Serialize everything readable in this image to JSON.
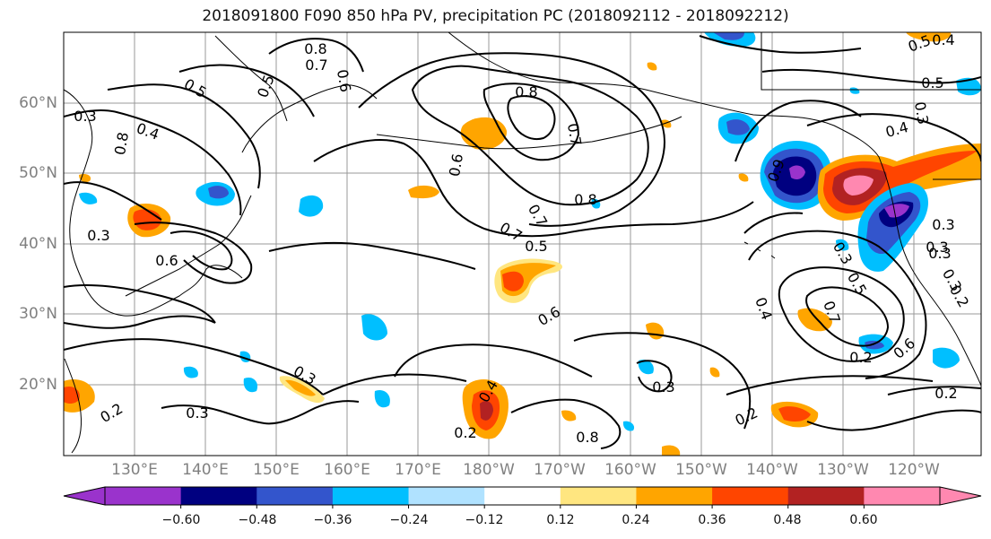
{
  "title": "2018091800 F090 850 hPa PV, precipitation PC (2018092112 - 2018092212)",
  "lat_labels": [
    "60°N",
    "50°N",
    "40°N",
    "30°N",
    "20°N"
  ],
  "lon_labels": [
    "130°E",
    "140°E",
    "150°E",
    "160°E",
    "170°E",
    "180°W",
    "170°W",
    "160°W",
    "150°W",
    "140°W",
    "130°W",
    "120°W"
  ],
  "colorbar": {
    "labels": [
      "−0.60",
      "−0.48",
      "−0.36",
      "−0.24",
      "−0.12",
      "0.12",
      "0.24",
      "0.36",
      "0.48",
      "0.60"
    ],
    "colors": [
      "#9a33cc",
      "#000080",
      "#3355cc",
      "#00bfff",
      "#b0e2ff",
      "#ffffff",
      "#ffe680",
      "#ffa500",
      "#ff4500",
      "#b22222",
      "#ff88b0"
    ]
  },
  "contour_labels": [
    {
      "text": "0.8"
    },
    {
      "text": "0.7"
    },
    {
      "text": "0.5"
    },
    {
      "text": "0.5"
    },
    {
      "text": "0.6"
    },
    {
      "text": "0.3"
    },
    {
      "text": "0.4"
    },
    {
      "text": "0.8"
    },
    {
      "text": "0.3"
    },
    {
      "text": "0.6"
    },
    {
      "text": "0.8"
    },
    {
      "text": "0.7"
    },
    {
      "text": "0.6"
    },
    {
      "text": "0.7"
    },
    {
      "text": "0.8"
    },
    {
      "text": "0.9"
    },
    {
      "text": "0.5"
    },
    {
      "text": "0.4"
    },
    {
      "text": "0.3"
    },
    {
      "text": "0.3"
    },
    {
      "text": "0.2"
    },
    {
      "text": "0.3"
    },
    {
      "text": "0.2"
    },
    {
      "text": "0.3"
    },
    {
      "text": "0.2"
    },
    {
      "text": "0.4"
    },
    {
      "text": "0.7"
    },
    {
      "text": "0.8"
    },
    {
      "text": "0.6"
    },
    {
      "text": "0.5"
    },
    {
      "text": "0.4"
    },
    {
      "text": "0.3"
    },
    {
      "text": "0.3"
    },
    {
      "text": "0.2"
    },
    {
      "text": "0.4"
    },
    {
      "text": "0.5"
    },
    {
      "text": "0.5"
    },
    {
      "text": "0.6"
    },
    {
      "text": "0.7"
    },
    {
      "text": "0.2"
    },
    {
      "text": "0.3"
    },
    {
      "text": "0.3"
    },
    {
      "text": "0.2"
    },
    {
      "text": "0.3"
    }
  ]
}
